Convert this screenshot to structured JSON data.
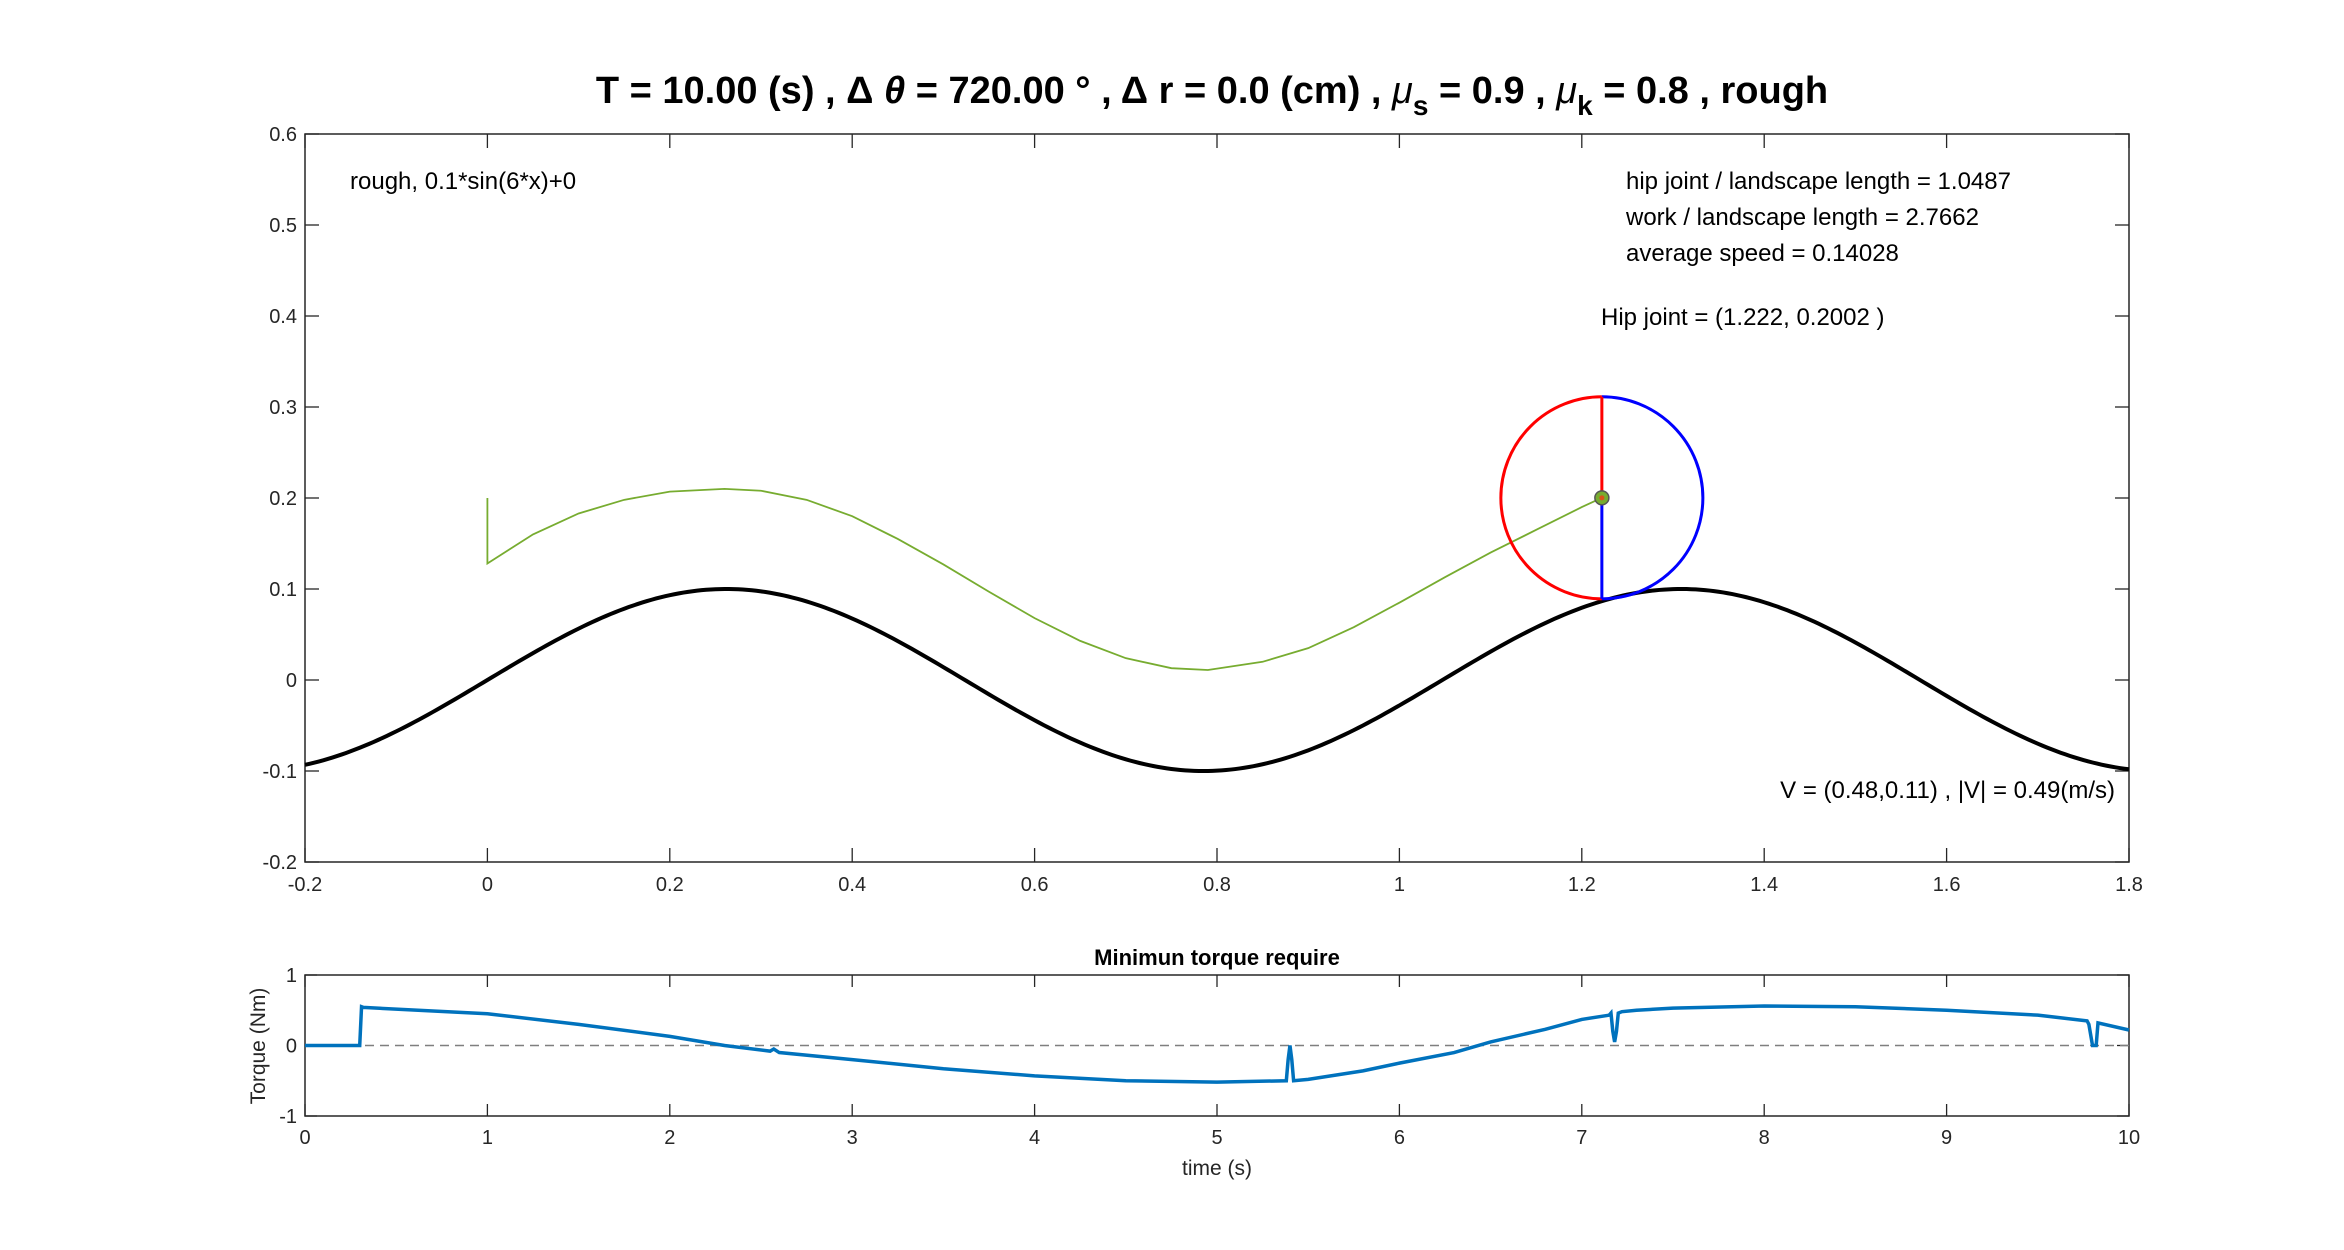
{
  "figure": {
    "title_parts": {
      "t": "T = 10.00 (s) , ",
      "delta1": "Δ",
      "theta": " θ",
      "rest1": " = 720.00 ° , ",
      "delta2": "Δ",
      "rest2": " r = 0.0 (cm) , ",
      "mu1": "μ",
      "sub1": "s",
      "rest3": " = 0.9 , ",
      "mu2": "μ",
      "sub2": "k",
      "rest4": " = 0.8 , rough"
    }
  },
  "annotations": {
    "terrain": "rough, 0.1*sin(6*x)+0",
    "hip_ratio": "hip joint / landscape length  = 1.0487",
    "work_ratio": "work / landscape length = 2.7662",
    "avg_speed": "average speed = 0.14028",
    "hip_joint": "Hip joint = (1.222, 0.2002 )",
    "velocity": "V = (0.48,0.11) , |V| = 0.49(m/s)"
  },
  "colors": {
    "terrain": "#000000",
    "trajectory": "#77AC30",
    "wheel_left": "#FF0000",
    "wheel_right": "#0000FF",
    "torque": "#0072BD",
    "hip_label": "#008000",
    "zero_line": "#7f7f7f"
  },
  "chart_data": [
    {
      "type": "line",
      "xlim": [
        -0.2,
        1.8
      ],
      "ylim": [
        -0.2,
        0.6
      ],
      "xticks": [
        "-0.2",
        "0",
        "0.2",
        "0.4",
        "0.6",
        "0.8",
        "1",
        "1.2",
        "1.4",
        "1.6",
        "1.8"
      ],
      "yticks": [
        "-0.2",
        "-0.1",
        "0",
        "0.1",
        "0.2",
        "0.3",
        "0.4",
        "0.5",
        "0.6"
      ],
      "grid": false,
      "series": [
        {
          "label": "terrain",
          "function": "0.1*sin(6*x)",
          "x_range": [
            -0.2,
            1.8
          ]
        },
        {
          "label": "hip trajectory",
          "x": [
            0,
            0,
            0.05,
            0.1,
            0.15,
            0.2,
            0.26,
            0.3,
            0.35,
            0.4,
            0.45,
            0.5,
            0.55,
            0.6,
            0.65,
            0.7,
            0.75,
            0.79,
            0.85,
            0.9,
            0.95,
            1.0,
            1.05,
            1.1,
            1.15,
            1.2,
            1.222
          ],
          "y": [
            0.2,
            0.128,
            0.16,
            0.183,
            0.198,
            0.207,
            0.21,
            0.208,
            0.198,
            0.18,
            0.155,
            0.127,
            0.097,
            0.068,
            0.043,
            0.024,
            0.013,
            0.011,
            0.02,
            0.035,
            0.058,
            0.085,
            0.113,
            0.14,
            0.165,
            0.19,
            0.2002
          ]
        }
      ],
      "wheel": {
        "center": [
          1.222,
          0.2002
        ],
        "radius": 0.111
      }
    },
    {
      "type": "line",
      "title": "Minimun torque require",
      "xlabel": "time (s)",
      "ylabel": "Torque (Nm)",
      "xlim": [
        0,
        10
      ],
      "ylim": [
        -1,
        1
      ],
      "xticks": [
        "0",
        "1",
        "2",
        "3",
        "4",
        "5",
        "6",
        "7",
        "8",
        "9",
        "10"
      ],
      "yticks": [
        "-1",
        "0",
        "1"
      ],
      "grid": false,
      "series": [
        {
          "name": "torque",
          "x": [
            0,
            0.3,
            0.31,
            0.32,
            1.0,
            1.5,
            2.0,
            2.3,
            2.55,
            2.57,
            2.6,
            3.0,
            3.5,
            4.0,
            4.5,
            5.0,
            5.38,
            5.39,
            5.4,
            5.41,
            5.42,
            5.5,
            5.8,
            6.0,
            6.3,
            6.5,
            6.8,
            7.0,
            7.15,
            7.16,
            7.17,
            7.18,
            7.19,
            7.2,
            7.22,
            7.3,
            7.5,
            8.0,
            8.5,
            9.0,
            9.5,
            9.77,
            9.78,
            9.8,
            9.82,
            9.83,
            10.0
          ],
          "y": [
            0.0,
            0.0,
            0.55,
            0.54,
            0.45,
            0.3,
            0.13,
            0.0,
            -0.08,
            -0.05,
            -0.1,
            -0.2,
            -0.33,
            -0.43,
            -0.5,
            -0.52,
            -0.5,
            -0.2,
            0.0,
            -0.2,
            -0.5,
            -0.48,
            -0.36,
            -0.25,
            -0.1,
            0.05,
            0.23,
            0.37,
            0.43,
            0.46,
            0.2,
            0.05,
            0.2,
            0.46,
            0.48,
            0.5,
            0.53,
            0.56,
            0.55,
            0.5,
            0.43,
            0.35,
            0.3,
            0.0,
            0.0,
            0.32,
            0.22
          ]
        },
        {
          "name": "zero reference",
          "x": [
            0,
            10
          ],
          "y": [
            0,
            0
          ],
          "style": "dashed"
        }
      ]
    }
  ]
}
